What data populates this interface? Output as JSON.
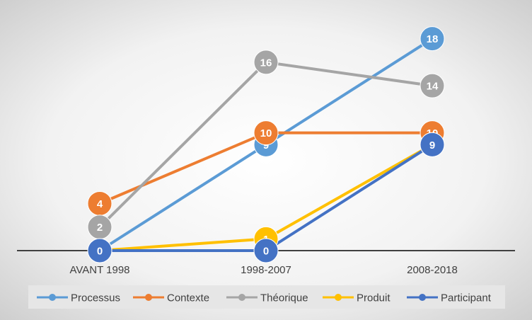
{
  "chart_data": {
    "type": "line",
    "categories": [
      "AVANT 1998",
      "1998-2007",
      "2008-2018"
    ],
    "series": [
      {
        "name": "Processus",
        "values": [
          0,
          9,
          18
        ],
        "color": "#5b9bd5"
      },
      {
        "name": "Contexte",
        "values": [
          4,
          10,
          10
        ],
        "color": "#ed7d31"
      },
      {
        "name": "Théorique",
        "values": [
          2,
          16,
          14
        ],
        "color": "#a5a5a5"
      },
      {
        "name": "Produit",
        "values": [
          0,
          1,
          9
        ],
        "color": "#ffc000"
      },
      {
        "name": "Participant",
        "values": [
          0,
          0,
          9
        ],
        "color": "#4472c4"
      }
    ],
    "ylim": [
      0,
      19
    ],
    "grid": false,
    "legend": "bottom",
    "data_labels": true,
    "background": "gradient-gray"
  }
}
